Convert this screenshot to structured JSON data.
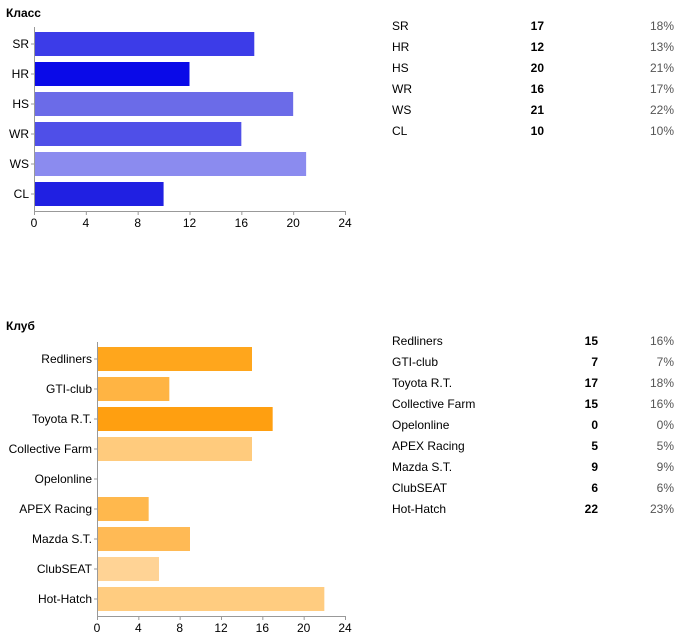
{
  "sections": {
    "class_title": "Класс",
    "club_title": "Клуб"
  },
  "chart_data": [
    {
      "type": "bar",
      "orientation": "horizontal",
      "title": "Класс",
      "categories": [
        "SR",
        "HR",
        "HS",
        "WR",
        "WS",
        "CL"
      ],
      "values": [
        17,
        12,
        20,
        16,
        21,
        10
      ],
      "percentages": [
        "18%",
        "13%",
        "21%",
        "17%",
        "22%",
        "10%"
      ],
      "bar_colors": [
        "#3c3ce8",
        "#0a0ae8",
        "#6b6be8",
        "#4f4fe8",
        "#8b8bef",
        "#2020e2"
      ],
      "xlim": [
        0,
        24
      ],
      "xticks": [
        0,
        4,
        8,
        12,
        16,
        20,
        24
      ],
      "grid": false,
      "legend": "table-right"
    },
    {
      "type": "bar",
      "orientation": "horizontal",
      "title": "Клуб",
      "categories": [
        "Redliners",
        "GTI-club",
        "Toyota R.T.",
        "Collective Farm",
        "Opelonline",
        "APEX Racing",
        "Mazda S.T.",
        "ClubSEAT",
        "Hot-Hatch"
      ],
      "values": [
        15,
        7,
        17,
        15,
        0,
        5,
        9,
        6,
        22
      ],
      "percentages": [
        "16%",
        "7%",
        "18%",
        "16%",
        "0%",
        "5%",
        "9%",
        "6%",
        "23%"
      ],
      "bar_colors": [
        "#ffa61c",
        "#ffb443",
        "#ff9f10",
        "#ffcb7d",
        "#ffc060",
        "#ffb84d",
        "#ffba55",
        "#ffd395",
        "#ffcc80"
      ],
      "xlim": [
        0,
        24
      ],
      "xticks": [
        0,
        4,
        8,
        12,
        16,
        20,
        24
      ],
      "grid": false,
      "legend": "table-right"
    }
  ]
}
